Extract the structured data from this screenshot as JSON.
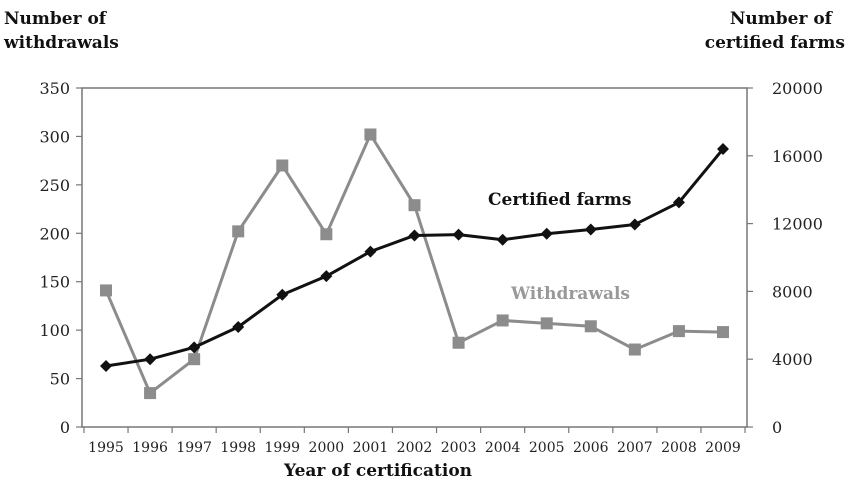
{
  "chart_data": {
    "type": "line",
    "x_label": "Year of certification",
    "y_left_label_line1": "Number of",
    "y_left_label_line2": "withdrawals",
    "y_right_label_line1": "Number of",
    "y_right_label_line2": "certified farms",
    "x": [
      "1995",
      "1996",
      "1997",
      "1998",
      "1999",
      "2000",
      "2001",
      "2002",
      "2003",
      "2004",
      "2005",
      "2006",
      "2007",
      "2008",
      "2009"
    ],
    "y_left_range": [
      0,
      350
    ],
    "y_left_ticks": [
      0,
      50,
      100,
      150,
      200,
      250,
      300,
      350
    ],
    "y_right_range": [
      0,
      20000
    ],
    "y_right_ticks": [
      0,
      4000,
      8000,
      12000,
      16000,
      20000
    ],
    "grid": false,
    "series": [
      {
        "name": "Withdrawals",
        "axis": "left",
        "color": "#8c8c8c",
        "marker": "square",
        "values": [
          141,
          35,
          70,
          202,
          270,
          199,
          302,
          229,
          87,
          110,
          107,
          104,
          80,
          99,
          98
        ]
      },
      {
        "name": "Certified farms",
        "axis": "right",
        "color": "#111111",
        "marker": "diamond",
        "values": [
          3600,
          4000,
          4700,
          5900,
          7800,
          8900,
          10350,
          11300,
          11350,
          11050,
          11400,
          11650,
          11950,
          13250,
          16400
        ]
      }
    ]
  }
}
